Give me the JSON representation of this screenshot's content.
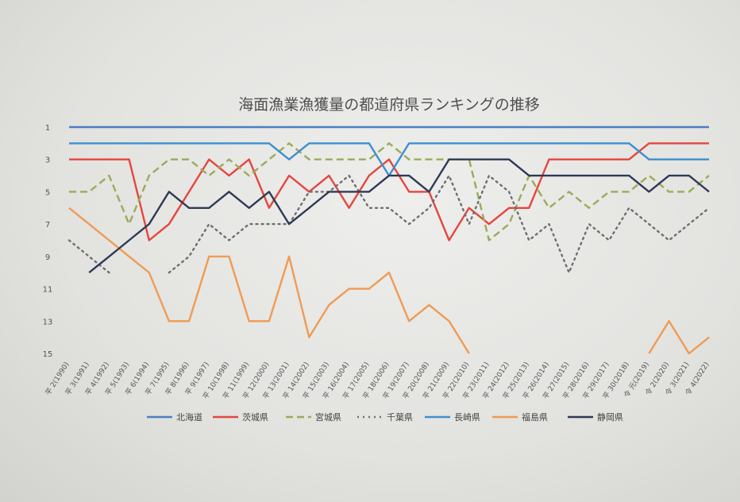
{
  "chart_data": {
    "type": "line",
    "title": "海面漁業漁獲量の都道府県ランキングの推移",
    "xlabel": "",
    "ylabel": "",
    "y_reversed": true,
    "ylim": [
      1,
      15
    ],
    "y_ticks": [
      "1",
      "3",
      "5",
      "7",
      "9",
      "11",
      "13",
      "15"
    ],
    "grid": false,
    "legend_position": "bottom",
    "categories": [
      "平 2(1990)",
      "平 3(1991)",
      "平 4(1992)",
      "平 5(1993)",
      "平 6(1994)",
      "平 7(1995)",
      "平 8(1996)",
      "平 9(1997)",
      "平 10(1998)",
      "平 11(1999)",
      "平 12(2000)",
      "平 13(2001)",
      "平 14(2002)",
      "平 15(2003)",
      "平 16(2004)",
      "平 17(2005)",
      "平 18(2006)",
      "平 19(2007)",
      "平 20(2008)",
      "平 21(2009)",
      "平 22(2010)",
      "平 23(2011)",
      "平 24(2012)",
      "平 25(2013)",
      "平 26(2014)",
      "平 27(2015)",
      "平 28(2016)",
      "平 29(2017)",
      "平 30(2018)",
      "令 元(2019)",
      "令 2(2020)",
      "令 3(2021)",
      "令 4(2022)"
    ],
    "series": [
      {
        "name": "北海道",
        "color": "#4a7fc1",
        "dash": "solid",
        "values": [
          1,
          1,
          1,
          1,
          1,
          1,
          1,
          1,
          1,
          1,
          1,
          1,
          1,
          1,
          1,
          1,
          1,
          1,
          1,
          1,
          1,
          1,
          1,
          1,
          1,
          1,
          1,
          1,
          1,
          1,
          1,
          1,
          1
        ]
      },
      {
        "name": "茨城県",
        "color": "#e4463f",
        "dash": "solid",
        "values": [
          3,
          3,
          3,
          3,
          8,
          7,
          5,
          3,
          4,
          3,
          6,
          4,
          5,
          4,
          6,
          4,
          3,
          5,
          5,
          8,
          6,
          7,
          6,
          6,
          3,
          3,
          3,
          3,
          3,
          2,
          2,
          2,
          2
        ]
      },
      {
        "name": "宮城県",
        "color": "#9aab5a",
        "dash": "dash",
        "values": [
          5,
          5,
          4,
          7,
          4,
          3,
          3,
          4,
          3,
          4,
          3,
          2,
          3,
          3,
          3,
          3,
          2,
          3,
          3,
          3,
          3,
          8,
          7,
          4,
          6,
          5,
          6,
          5,
          5,
          4,
          5,
          5,
          4
        ]
      },
      {
        "name": "千葉県",
        "color": "#6f6f72",
        "dash": "dot",
        "values": [
          8,
          9,
          10,
          null,
          null,
          10,
          9,
          7,
          8,
          7,
          7,
          7,
          5,
          5,
          4,
          6,
          6,
          7,
          6,
          4,
          7,
          4,
          5,
          8,
          7,
          10,
          7,
          8,
          6,
          7,
          8,
          7,
          6
        ]
      },
      {
        "name": "長崎県",
        "color": "#3d8fd1",
        "dash": "solid",
        "values": [
          2,
          2,
          2,
          2,
          2,
          2,
          2,
          2,
          2,
          2,
          2,
          3,
          2,
          2,
          2,
          2,
          4,
          2,
          2,
          2,
          2,
          2,
          2,
          2,
          2,
          2,
          2,
          2,
          2,
          3,
          3,
          3,
          3
        ]
      },
      {
        "name": "福島県",
        "color": "#ef9b55",
        "dash": "solid",
        "values": [
          6,
          7,
          8,
          9,
          10,
          13,
          13,
          9,
          9,
          13,
          13,
          9,
          14,
          12,
          11,
          11,
          10,
          13,
          12,
          13,
          15,
          null,
          null,
          null,
          null,
          null,
          null,
          null,
          null,
          15,
          13,
          15,
          14
        ]
      },
      {
        "name": "静岡県",
        "color": "#2e3a55",
        "dash": "solid",
        "values": [
          null,
          10,
          9,
          8,
          7,
          5,
          6,
          6,
          5,
          6,
          5,
          7,
          6,
          5,
          5,
          5,
          4,
          4,
          5,
          3,
          3,
          3,
          3,
          4,
          4,
          4,
          4,
          4,
          4,
          5,
          4,
          4,
          5
        ]
      }
    ]
  }
}
